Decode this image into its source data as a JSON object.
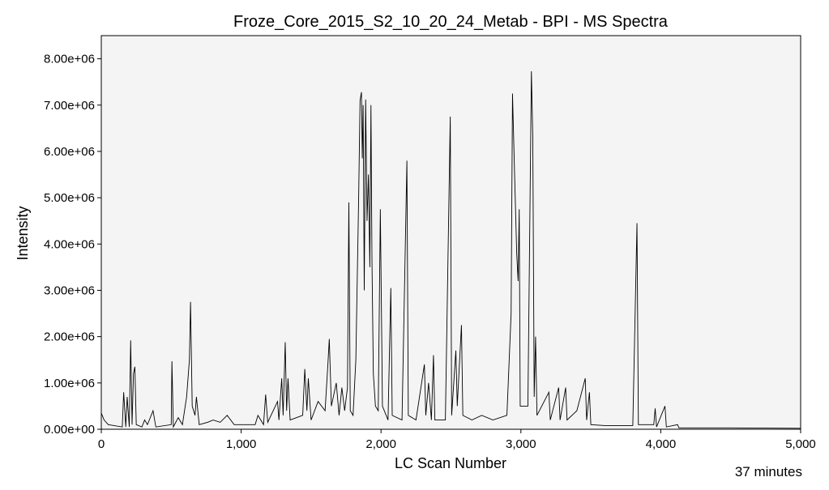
{
  "chart_data": {
    "type": "line",
    "title": "Froze_Core_2015_S2_10_20_24_Metab - BPI - MS Spectra",
    "x_label": "LC Scan Number",
    "y_label": "Intensity",
    "annotation": "37 minutes",
    "color": "#000000",
    "background": "#f4f4f4",
    "xlim": [
      0,
      5000
    ],
    "xticks": [
      0,
      {
        "value": 1000,
        "label": "1,000"
      },
      {
        "value": 2000,
        "label": "2,000"
      },
      {
        "value": 3000,
        "label": "3,000"
      },
      {
        "value": 4000,
        "label": "4,000"
      },
      {
        "value": 5000,
        "label": "5,000"
      }
    ],
    "ylim": [
      0,
      8500000
    ],
    "yticks": [
      {
        "value": 0,
        "label": "0.00e+00"
      },
      {
        "value": 1000000,
        "label": "1.00e+06"
      },
      {
        "value": 2000000,
        "label": "2.00e+06"
      },
      {
        "value": 3000000,
        "label": "3.00e+06"
      },
      {
        "value": 4000000,
        "label": "4.00e+06"
      },
      {
        "value": 5000000,
        "label": "5.00e+06"
      },
      {
        "value": 6000000,
        "label": "6.00e+06"
      },
      {
        "value": 7000000,
        "label": "7.00e+06"
      },
      {
        "value": 8000000,
        "label": "8.00e+06"
      }
    ],
    "x": [
      0,
      20,
      50,
      150,
      160,
      175,
      185,
      200,
      210,
      220,
      230,
      240,
      250,
      290,
      310,
      330,
      370,
      390,
      500,
      505,
      515,
      550,
      580,
      610,
      630,
      638,
      650,
      670,
      680,
      700,
      760,
      800,
      850,
      900,
      950,
      1100,
      1120,
      1160,
      1175,
      1190,
      1260,
      1270,
      1290,
      1300,
      1315,
      1325,
      1335,
      1350,
      1440,
      1455,
      1470,
      1480,
      1500,
      1550,
      1600,
      1620,
      1630,
      1645,
      1680,
      1700,
      1720,
      1740,
      1760,
      1770,
      1780,
      1800,
      1820,
      1840,
      1850,
      1860,
      1866,
      1872,
      1880,
      1890,
      1900,
      1910,
      1920,
      1928,
      1935,
      1945,
      1960,
      1980,
      1995,
      2005,
      2010,
      2050,
      2070,
      2080,
      2150,
      2185,
      2195,
      2250,
      2310,
      2320,
      2340,
      2360,
      2375,
      2385,
      2460,
      2495,
      2505,
      2535,
      2545,
      2575,
      2585,
      2650,
      2720,
      2800,
      2900,
      2930,
      2940,
      2955,
      2970,
      2980,
      2988,
      2995,
      3050,
      3075,
      3085,
      3095,
      3105,
      3115,
      3200,
      3210,
      3270,
      3280,
      3320,
      3330,
      3400,
      3460,
      3470,
      3490,
      3500,
      3600,
      3800,
      3830,
      3840,
      3950,
      3960,
      3970,
      4030,
      4040,
      4120,
      4130,
      4500,
      5000
    ],
    "values": [
      350000.0,
      200000.0,
      100000.0,
      50000.0,
      800000.0,
      50000.0,
      700000.0,
      50000.0,
      1920000.0,
      100000.0,
      1200000.0,
      1350000.0,
      100000.0,
      50000.0,
      200000.0,
      100000.0,
      400000.0,
      50000.0,
      100000.0,
      1470000.0,
      50000.0,
      250000.0,
      100000.0,
      700000.0,
      1500000.0,
      2750000.0,
      500000.0,
      300000.0,
      700000.0,
      100000.0,
      150000.0,
      200000.0,
      150000.0,
      300000.0,
      100000.0,
      100000.0,
      300000.0,
      100000.0,
      750000.0,
      150000.0,
      600000.0,
      200000.0,
      1100000.0,
      300000.0,
      1880000.0,
      400000.0,
      1100000.0,
      200000.0,
      300000.0,
      1300000.0,
      400000.0,
      1100000.0,
      200000.0,
      600000.0,
      400000.0,
      1400000.0,
      1950000.0,
      500000.0,
      1000000.0,
      300000.0,
      900000.0,
      400000.0,
      900000.0,
      4900000.0,
      400000.0,
      300000.0,
      1500000.0,
      5000000.0,
      7100000.0,
      7280000.0,
      5850000.0,
      7000000.0,
      3000000.0,
      7120000.0,
      4500000.0,
      5500000.0,
      3500000.0,
      7000000.0,
      3700000.0,
      1200000.0,
      500000.0,
      400000.0,
      4750000.0,
      2000000.0,
      500000.0,
      200000.0,
      3050000.0,
      300000.0,
      200000.0,
      5800000.0,
      300000.0,
      200000.0,
      1400000.0,
      300000.0,
      1000000.0,
      200000.0,
      1600000.0,
      200000.0,
      200000.0,
      6750000.0,
      300000.0,
      1700000.0,
      500000.0,
      2250000.0,
      300000.0,
      200000.0,
      300000.0,
      200000.0,
      300000.0,
      2500000.0,
      7250000.0,
      5500000.0,
      3800000.0,
      3200000.0,
      4750000.0,
      500000.0,
      500000.0,
      7730000.0,
      6300000.0,
      700000.0,
      2000000.0,
      300000.0,
      800000.0,
      200000.0,
      900000.0,
      200000.0,
      900000.0,
      200000.0,
      400000.0,
      1100000.0,
      200000.0,
      800000.0,
      100000.0,
      80000.0,
      80000.0,
      4450000.0,
      100000.0,
      100000.0,
      450000.0,
      50000.0,
      500000.0,
      50000.0,
      100000.0,
      30000.0,
      30000.0,
      20000.0
    ]
  }
}
